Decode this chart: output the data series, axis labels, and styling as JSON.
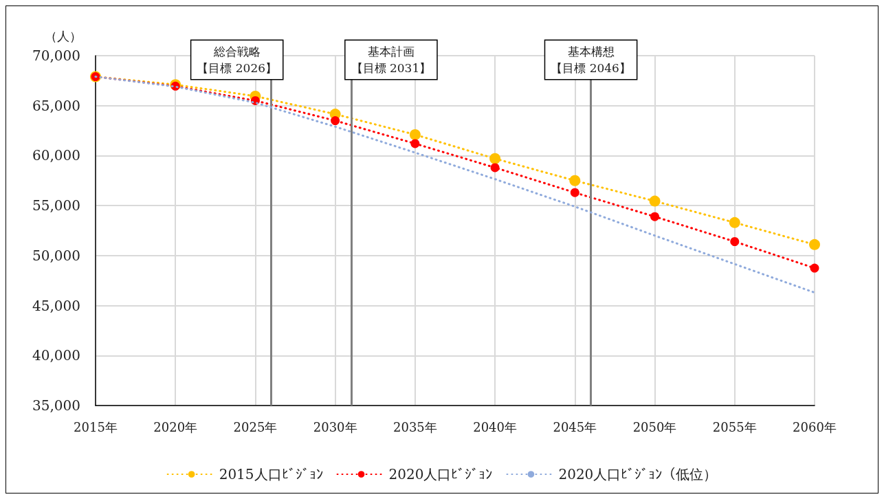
{
  "chart_data": {
    "type": "line",
    "ylabel": "（人）",
    "xlim": [
      2015,
      2060
    ],
    "xticks": [
      {
        "value": 2015,
        "label": "2015年"
      },
      {
        "value": 2020,
        "label": "2020年"
      },
      {
        "value": 2025,
        "label": "2025年"
      },
      {
        "value": 2030,
        "label": "2030年"
      },
      {
        "value": 2035,
        "label": "2035年"
      },
      {
        "value": 2040,
        "label": "2040年"
      },
      {
        "value": 2045,
        "label": "2045年"
      },
      {
        "value": 2050,
        "label": "2050年"
      },
      {
        "value": 2055,
        "label": "2055年"
      },
      {
        "value": 2060,
        "label": "2060年"
      }
    ],
    "ylim": [
      35000,
      70000
    ],
    "yticks": [
      {
        "value": 35000,
        "label": "35,000"
      },
      {
        "value": 40000,
        "label": "40,000"
      },
      {
        "value": 45000,
        "label": "45,000"
      },
      {
        "value": 50000,
        "label": "50,000"
      },
      {
        "value": 55000,
        "label": "55,000"
      },
      {
        "value": 60000,
        "label": "60,000"
      },
      {
        "value": 65000,
        "label": "65,000"
      },
      {
        "value": 70000,
        "label": "70,000"
      }
    ],
    "x": [
      2015,
      2020,
      2025,
      2030,
      2035,
      2040,
      2045,
      2050,
      2055,
      2060
    ],
    "series": [
      {
        "name": "2015人口ﾋﾞｼﾞｮﾝ",
        "color": "#ffc000",
        "marker": "circle",
        "values": [
          67900,
          67100,
          65950,
          64150,
          62100,
          59700,
          57500,
          55450,
          53300,
          51100
        ]
      },
      {
        "name": "2020人口ﾋﾞｼﾞｮﾝ",
        "color": "#ff0000",
        "marker": "circle",
        "values": [
          67900,
          66950,
          65500,
          63500,
          61200,
          58800,
          56300,
          53900,
          51400,
          48750
        ]
      },
      {
        "name": "2020人口ﾋﾞｼﾞｮﾝ（低位）",
        "color": "#8faadc",
        "marker": "none",
        "values": [
          67900,
          66900,
          65300,
          62900,
          60300,
          57650,
          54900,
          52000,
          49150,
          46300
        ]
      }
    ],
    "line_style": "dotted",
    "grid": true,
    "legend": "bottom",
    "ref_lines": [
      {
        "axis": "x",
        "value": 2026,
        "label": "総合戦略【目標 2026】",
        "color": "#808080"
      },
      {
        "axis": "x",
        "value": 2031,
        "label": "基本計画【目標 2031】",
        "color": "#808080"
      },
      {
        "axis": "x",
        "value": 2046,
        "label": "基本構想【目標 2046】",
        "color": "#808080"
      }
    ]
  }
}
